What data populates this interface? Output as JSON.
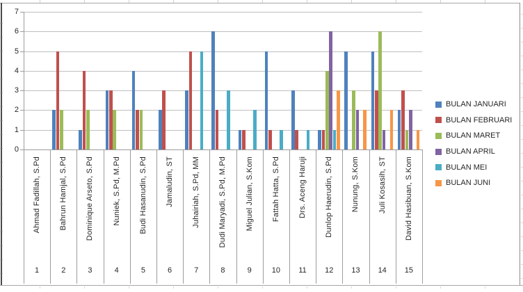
{
  "chart_data": {
    "type": "bar",
    "title": "",
    "xlabel": "",
    "ylabel": "",
    "ylim": [
      0,
      7
    ],
    "yticks": [
      0,
      1,
      2,
      3,
      4,
      5,
      6,
      7
    ],
    "grid": true,
    "legend_position": "right",
    "categories": [
      "Ahmad Fadillah, S.Pd",
      "Bahrun Hamjal,  S.Pd",
      "Dominique Arseto, S.Pd",
      "Nuniek, S.Pd, M.Pd",
      "Budi Hasanudin,  S.Pd",
      "Jamaludin, ST",
      "Juhairiah, S.Pd, MM",
      "Dudi Maryadi, S.Pd, M.Pd",
      "Miguel Julian, S.Kom",
      "Fattah  Hatta, S.Pd",
      "Drs. Aceng  Haruji",
      "Dunlop Haerudin, S.Pd",
      "Nunung, S.Kom",
      "Juli Kosasih,  ST",
      "David Hasibuan, S.Kom"
    ],
    "category_numbers": [
      "1",
      "2",
      "3",
      "4",
      "5",
      "6",
      "7",
      "8",
      "9",
      "10",
      "11",
      "12",
      "13",
      "14",
      "15"
    ],
    "series": [
      {
        "name": "BULAN JANUARI",
        "color": "#4F81BD",
        "values": [
          0,
          2,
          1,
          3,
          4,
          2,
          3,
          6,
          1,
          5,
          3,
          1,
          5,
          5,
          2
        ]
      },
      {
        "name": "BULAN FEBRUARI",
        "color": "#C0504D",
        "values": [
          0,
          5,
          4,
          3,
          2,
          3,
          5,
          2,
          1,
          1,
          1,
          1,
          0,
          3,
          3
        ]
      },
      {
        "name": "BULAN MARET",
        "color": "#9BBB59",
        "values": [
          0,
          2,
          2,
          2,
          2,
          0,
          0,
          0,
          0,
          0,
          0,
          4,
          3,
          6,
          1
        ]
      },
      {
        "name": "BULAN APRIL",
        "color": "#8064A2",
        "values": [
          0,
          0,
          0,
          0,
          0,
          0,
          0,
          0,
          0,
          0,
          0,
          6,
          2,
          1,
          2
        ]
      },
      {
        "name": "BULAN MEI",
        "color": "#4BACC6",
        "values": [
          0,
          0,
          0,
          0,
          0,
          0,
          5,
          3,
          2,
          1,
          1,
          1,
          0,
          0,
          0
        ]
      },
      {
        "name": "BULAN JUNI",
        "color": "#F79646",
        "values": [
          0,
          0,
          0,
          0,
          0,
          0,
          0,
          0,
          0,
          0,
          0,
          3,
          2,
          2,
          1
        ]
      }
    ]
  },
  "style_colors": {
    "gridline": "#BFBFBF",
    "axis": "#9C9C9C",
    "divider": "#9C9C9C",
    "text": "#262626",
    "frame_border": "#A6A6A6",
    "frame_left": "#4A4A4A",
    "frame_right": "#8C8C8C",
    "row_stub": "#D9D9D9",
    "col_stub": "#C9D1DE",
    "background": "#FFFFFF"
  }
}
